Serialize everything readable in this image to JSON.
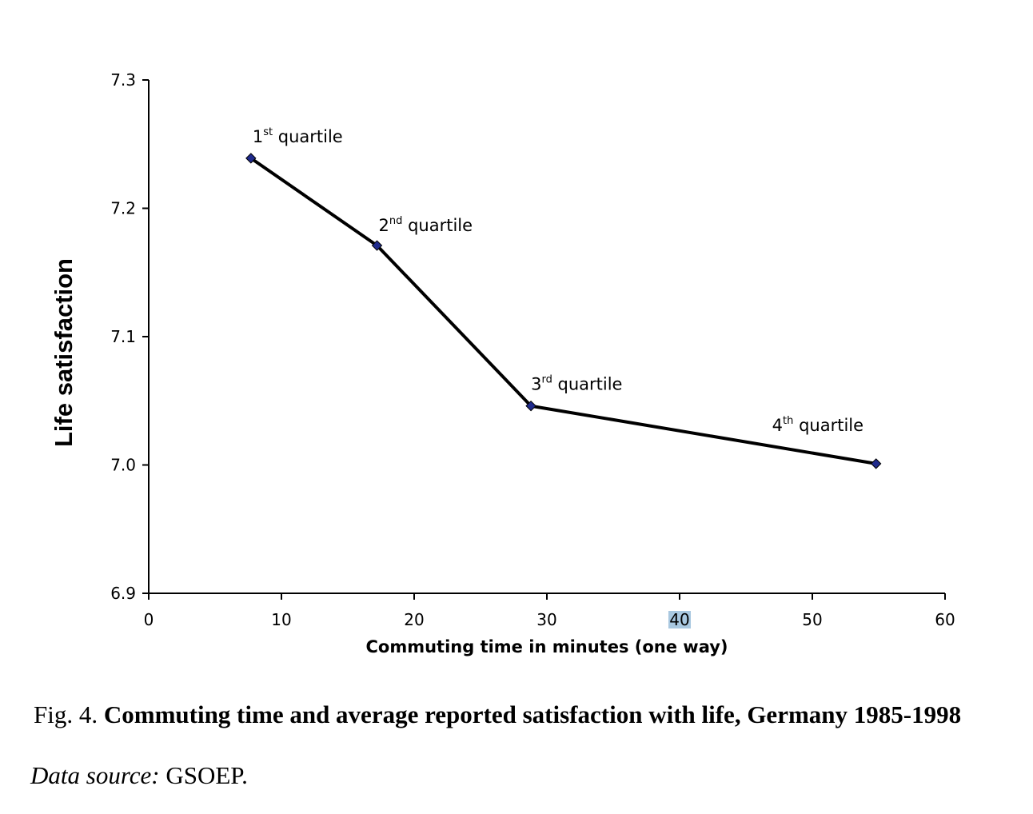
{
  "chart_data": {
    "type": "line",
    "xlabel": "Commuting time in minutes (one way)",
    "ylabel": "Life satisfaction",
    "xlim": [
      0,
      60
    ],
    "ylim": [
      6.9,
      7.3
    ],
    "x_ticks": [
      0,
      10,
      20,
      30,
      40,
      50,
      60
    ],
    "y_ticks": [
      "6.9",
      "7.0",
      "7.1",
      "7.2",
      "7.3"
    ],
    "highlighted_tick": "40",
    "line_color": "#000000",
    "marker_color": "#1f2a8c",
    "grid": false,
    "points": [
      {
        "x": 7.7,
        "y": 7.239,
        "label_num": "1",
        "label_sup": "st",
        "label_text": " quartile"
      },
      {
        "x": 17.2,
        "y": 7.171,
        "label_num": "2",
        "label_sup": "nd",
        "label_text": " quartile"
      },
      {
        "x": 28.8,
        "y": 7.046,
        "label_num": "3",
        "label_sup": "rd",
        "label_text": " quartile"
      },
      {
        "x": 54.8,
        "y": 7.001,
        "label_num": "4",
        "label_sup": "th",
        "label_text": " quartile"
      }
    ]
  },
  "caption": {
    "prefix": "Fig. 4. ",
    "title": "Commuting time and average reported satisfaction with life, Germany 1985-1998"
  },
  "source": {
    "label": "Data source:",
    "value": " GSOEP."
  }
}
